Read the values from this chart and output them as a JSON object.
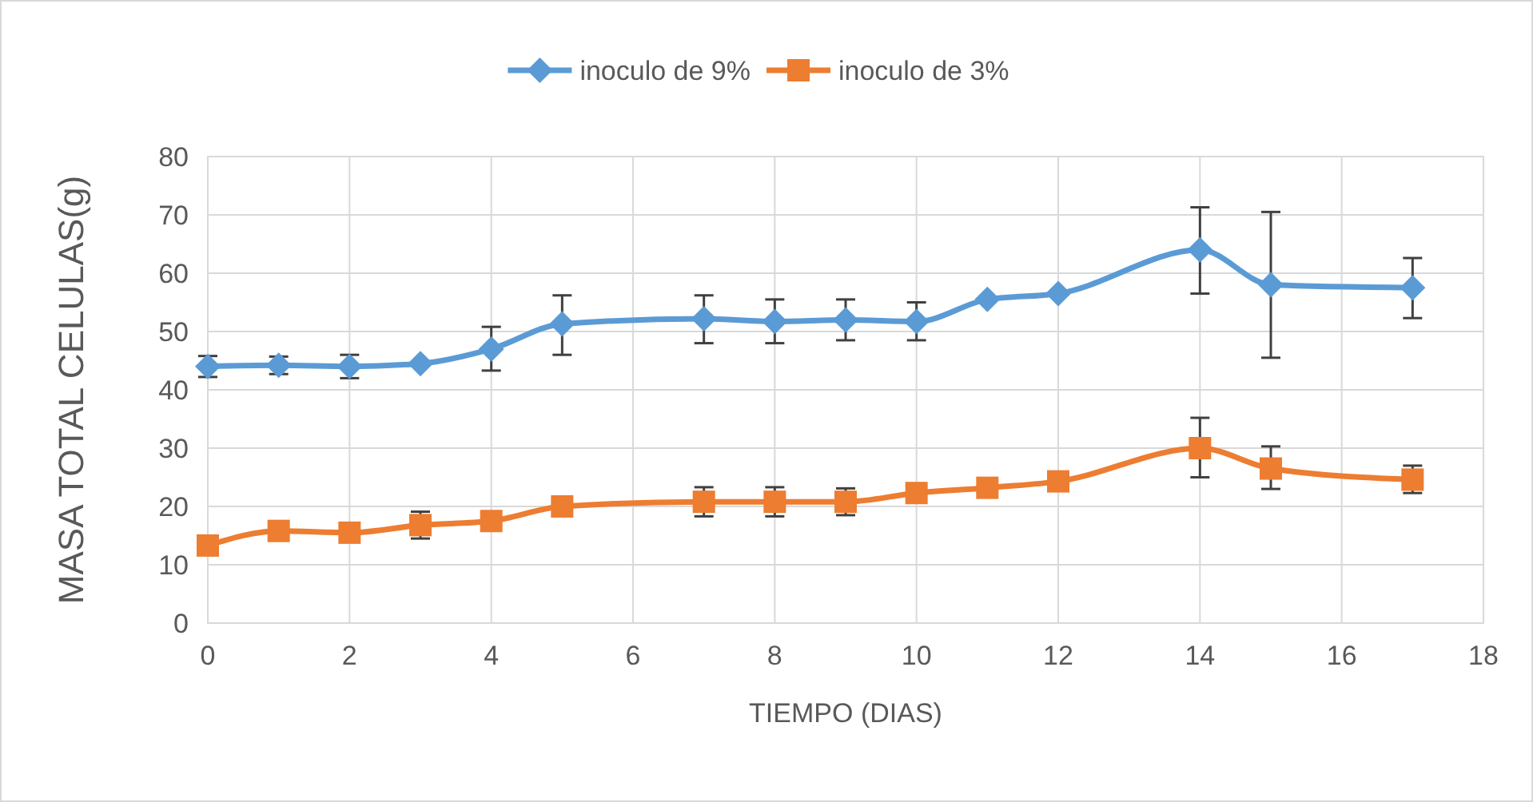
{
  "chart_data": {
    "type": "line",
    "xlabel": "TIEMPO (DIAS)",
    "ylabel": "MASA TOTAL CELULAS(g)",
    "x": [
      0,
      1,
      2,
      3,
      4,
      5,
      7,
      8,
      9,
      10,
      11,
      12,
      14,
      15,
      17
    ],
    "xlim": [
      0,
      18
    ],
    "xticks": [
      0,
      2,
      4,
      6,
      8,
      10,
      12,
      14,
      16,
      18
    ],
    "ylim": [
      0,
      80
    ],
    "yticks": [
      0,
      10,
      20,
      30,
      40,
      50,
      60,
      70,
      80
    ],
    "grid": true,
    "legend": "top",
    "line_style": "solid",
    "series": [
      {
        "name": "inoculo de 9%",
        "color": "#5b9bd5",
        "marker": "diamond",
        "values": [
          44,
          44.2,
          44,
          44.5,
          47,
          51.3,
          52.2,
          51.7,
          52,
          51.7,
          55.5,
          56.5,
          64,
          58,
          57.5
        ],
        "errors": [
          1.8,
          1.5,
          2,
          null,
          [
            43.3,
            50.8
          ],
          [
            46,
            56.2
          ],
          [
            48,
            56.2
          ],
          [
            48,
            55.5
          ],
          [
            48.5,
            55.5
          ],
          [
            48.5,
            55
          ],
          null,
          null,
          [
            56.5,
            71.3
          ],
          [
            45.5,
            70.5
          ],
          [
            52.3,
            62.6
          ]
        ]
      },
      {
        "name": "inoculo de 3%",
        "color": "#ed7d31",
        "marker": "square",
        "values": [
          13.3,
          15.8,
          15.5,
          16.8,
          17.5,
          20,
          20.8,
          20.8,
          20.8,
          22.3,
          23.2,
          24.3,
          30,
          26.5,
          24.6
        ],
        "errors": [
          null,
          null,
          null,
          2.3,
          null,
          null,
          2.5,
          2.5,
          2.3,
          null,
          null,
          null,
          [
            25,
            35.2
          ],
          [
            23,
            30.3
          ],
          [
            22.3,
            27
          ]
        ]
      }
    ]
  }
}
